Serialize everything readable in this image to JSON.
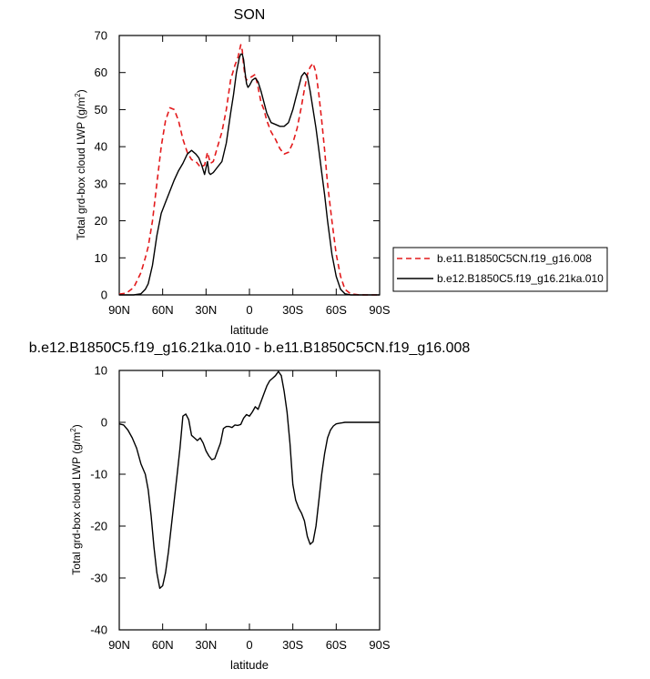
{
  "chart_data": [
    {
      "type": "line",
      "title": "SON",
      "xlabel": "latitude",
      "ylabel_main": "Total grd-box cloud LWP (g/m",
      "ylabel_sup": "2",
      "ylabel_close": ")",
      "xlim": [
        90,
        -90
      ],
      "ylim": [
        0,
        70
      ],
      "xticks": [
        90,
        60,
        30,
        0,
        -30,
        -60,
        -90
      ],
      "xtick_labels": [
        "90N",
        "60N",
        "30N",
        "0",
        "30S",
        "60S",
        "90S"
      ],
      "yticks": [
        0,
        10,
        20,
        30,
        40,
        50,
        60,
        70
      ],
      "ytick_labels": [
        "0",
        "10",
        "20",
        "30",
        "40",
        "50",
        "60",
        "70"
      ],
      "legend_position": "right",
      "series": [
        {
          "name": "b.e11.B1850C5CN.f19_g16.008",
          "color": "#e31a1c",
          "dash": "dashed",
          "x": [
            90,
            85,
            80,
            75,
            72,
            70,
            67,
            64,
            61,
            58,
            55,
            52,
            49,
            46,
            43,
            40,
            37,
            34,
            31,
            29,
            27,
            25,
            22,
            19,
            16,
            13,
            10,
            8,
            6,
            5,
            4,
            3,
            2,
            0,
            -2,
            -4,
            -6,
            -8,
            -10,
            -12,
            -15,
            -18,
            -21,
            -24,
            -27,
            -30,
            -33,
            -36,
            -38,
            -40,
            -42,
            -44,
            -46,
            -48,
            -50,
            -52,
            -54,
            -57,
            -60,
            -63,
            -66,
            -70,
            -75,
            -80,
            -85,
            -90
          ],
          "y": [
            0.2,
            0.5,
            2,
            6,
            10,
            13,
            20,
            30,
            40,
            47,
            50.5,
            50,
            47,
            42,
            38.5,
            36.5,
            36,
            34.5,
            35,
            38.5,
            35.5,
            36,
            40,
            44,
            50,
            58,
            62,
            64,
            67.5,
            66,
            62,
            59,
            58,
            58.5,
            59,
            59.5,
            56,
            52,
            50,
            47,
            44,
            42,
            39.5,
            38,
            38.5,
            41,
            45,
            51,
            55.5,
            59.5,
            61.5,
            62.5,
            60,
            54,
            47,
            39,
            30,
            20,
            11,
            5,
            1.5,
            0.3,
            0.05,
            0,
            0,
            0
          ]
        },
        {
          "name": "b.e12.B1850C5.f19_g16.21ka.010",
          "color": "#000000",
          "dash": "solid",
          "x": [
            90,
            85,
            80,
            75,
            72,
            70,
            67,
            64,
            61,
            58,
            55,
            52,
            49,
            46,
            43,
            40,
            37,
            35,
            33,
            31,
            29,
            28,
            27,
            25,
            22,
            19,
            16,
            13,
            11,
            9,
            7,
            6,
            5,
            4,
            3,
            2,
            1,
            0,
            -2,
            -4,
            -6,
            -8,
            -10,
            -12,
            -15,
            -18,
            -21,
            -24,
            -27,
            -30,
            -32,
            -34,
            -36,
            -38,
            -40,
            -42,
            -44,
            -46,
            -48,
            -50,
            -52,
            -54,
            -57,
            -60,
            -63,
            -66,
            -70,
            -75,
            -80,
            -85,
            -90
          ],
          "y": [
            0,
            0,
            0,
            0.3,
            1.5,
            3,
            8,
            16,
            22,
            25,
            28,
            31,
            33.5,
            35.5,
            38,
            39,
            38,
            37,
            35,
            32.5,
            36,
            33,
            32.5,
            33,
            34.5,
            36,
            41,
            49,
            54,
            60,
            64,
            65,
            65,
            63.5,
            60,
            57,
            56,
            56.5,
            58,
            58.5,
            57.5,
            55,
            52,
            49,
            46.5,
            46,
            45.5,
            45.5,
            46.5,
            50,
            53,
            56,
            59,
            60,
            59,
            55,
            50,
            45,
            39,
            33,
            27,
            20,
            11,
            5,
            1.5,
            0.3,
            0,
            0,
            0,
            0,
            0
          ]
        }
      ]
    },
    {
      "type": "line",
      "title": "b.e12.B1850C5.f19_g16.21ka.010 - b.e11.B1850C5CN.f19_g16.008",
      "xlabel": "latitude",
      "ylabel_main": "Total grd-box cloud LWP (g/m",
      "ylabel_sup": "2",
      "ylabel_close": ")",
      "xlim": [
        90,
        -90
      ],
      "ylim": [
        -40,
        10
      ],
      "xticks": [
        90,
        60,
        30,
        0,
        -30,
        -60,
        -90
      ],
      "xtick_labels": [
        "90N",
        "60N",
        "30N",
        "0",
        "30S",
        "60S",
        "90S"
      ],
      "yticks": [
        -40,
        -30,
        -20,
        -10,
        0,
        10
      ],
      "ytick_labels": [
        "-40",
        "-30",
        "-20",
        "-10",
        "0",
        "10"
      ],
      "series": [
        {
          "color": "#000000",
          "dash": "solid",
          "x": [
            90,
            87,
            84,
            81,
            78,
            75,
            72,
            70,
            68,
            66,
            64,
            62,
            60,
            58,
            56,
            54,
            52,
            50,
            48,
            46,
            44,
            42,
            40,
            38,
            36,
            34,
            32,
            30,
            28,
            26,
            24,
            22,
            20,
            18,
            16,
            14,
            12,
            10,
            8,
            6,
            4,
            2,
            0,
            -2,
            -4,
            -6,
            -8,
            -10,
            -12,
            -14,
            -16,
            -18,
            -20,
            -22,
            -24,
            -26,
            -28,
            -30,
            -32,
            -34,
            -36,
            -38,
            -40,
            -42,
            -44,
            -46,
            -48,
            -50,
            -52,
            -54,
            -56,
            -58,
            -60,
            -62,
            -64,
            -66,
            -68,
            -70,
            -72,
            -75,
            -80,
            -85,
            -90
          ],
          "y": [
            -0.3,
            -0.5,
            -1.5,
            -3,
            -5,
            -8,
            -10,
            -13,
            -18,
            -24,
            -29,
            -32,
            -31.5,
            -29,
            -25,
            -20,
            -15,
            -10,
            -5,
            1.2,
            1.6,
            0.5,
            -2.5,
            -3,
            -3.5,
            -3,
            -4,
            -5.5,
            -6.5,
            -7.2,
            -7,
            -5.5,
            -4,
            -1.2,
            -0.8,
            -0.8,
            -1,
            -0.5,
            -0.6,
            -0.4,
            0.8,
            1.5,
            1.2,
            2,
            3,
            2.5,
            4,
            5.5,
            7,
            8,
            8.5,
            9,
            9.8,
            9,
            6,
            2,
            -4,
            -12,
            -15,
            -16.5,
            -17.5,
            -19,
            -22,
            -23.5,
            -23,
            -20,
            -15,
            -10,
            -6,
            -3,
            -1.5,
            -0.7,
            -0.3,
            -0.2,
            -0.1,
            0,
            0,
            0,
            0,
            0,
            0,
            0,
            0
          ]
        }
      ]
    }
  ]
}
